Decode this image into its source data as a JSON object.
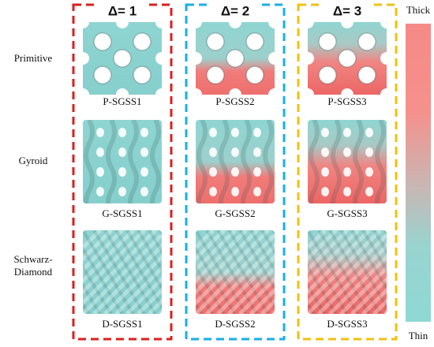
{
  "columns": [
    {
      "label": "Δ= 1"
    },
    {
      "label": "Δ= 2"
    },
    {
      "label": "Δ= 3"
    }
  ],
  "rows": [
    {
      "label": [
        "Primitive"
      ],
      "captions": [
        "P-SGSS1",
        "P-SGSS2",
        "P-SGSS3"
      ]
    },
    {
      "label": [
        "Gyroid"
      ],
      "captions": [
        "G-SGSS1",
        "G-SGSS2",
        "G-SGSS3"
      ]
    },
    {
      "label": [
        "Schwarz-",
        "Diamond"
      ],
      "captions": [
        "D-SGSS1",
        "D-SGSS2",
        "D-SGSS3"
      ]
    }
  ],
  "colorbar": {
    "top": "Thick",
    "bottom": "Thin"
  }
}
